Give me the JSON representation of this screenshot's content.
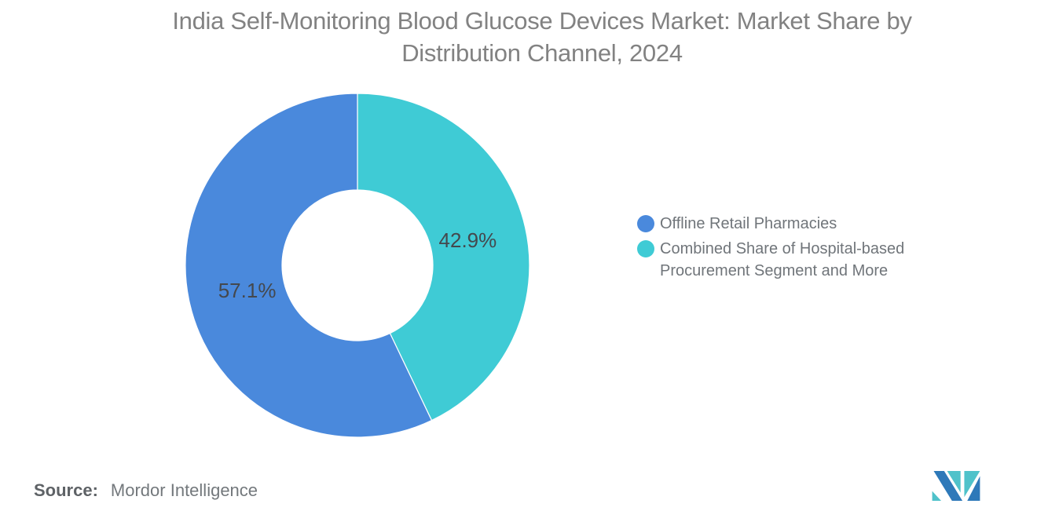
{
  "title": {
    "full": "India Self-Monitoring Blood Glucose Devices Market: Market Share by Distribution Channel, 2024",
    "line1": "India Self-Monitoring Blood Glucose Devices Market: Market Share by",
    "line2": "Distribution Channel, 2024"
  },
  "chart_data": {
    "type": "pie",
    "subtype": "donut",
    "title": "India Self-Monitoring Blood Glucose Devices Market: Market Share by Distribution Channel, 2024",
    "unit": "percent",
    "slices": [
      {
        "label": "Offline Retail Pharmacies",
        "value": 57.1,
        "display": "57.1%",
        "color": "#4a89dc"
      },
      {
        "label": "Combined Share of Hospital-based Procurement Segment and More",
        "value": 42.9,
        "display": "42.9%",
        "color": "#3fcbd5"
      }
    ],
    "layout": {
      "start_angle_deg": 0,
      "direction": "clockwise",
      "slice_at_top_right": "Combined Share of Hospital-based Procurement Segment and More",
      "inner_radius_ratio": 0.44,
      "legend_position": "right",
      "data_labels": "inside",
      "slice_border_color": "#ffffff"
    }
  },
  "footer": {
    "source_label": "Source:",
    "source_value": "Mordor Intelligence"
  },
  "logo": {
    "name": "mordor-intelligence-logo",
    "blue": "#2e79b9",
    "teal": "#4fc2ca"
  }
}
